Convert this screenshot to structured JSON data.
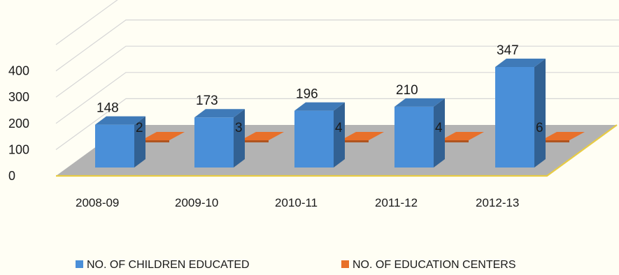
{
  "chart_data": {
    "type": "bar",
    "style": "3d-clustered-column",
    "categories": [
      "2008-09",
      "2009-10",
      "2010-11",
      "2011-12",
      "2012-13"
    ],
    "series": [
      {
        "name": "NO. OF CHILDREN EDUCATED",
        "values": [
          148,
          173,
          196,
          210,
          347
        ],
        "color": "#4a8fd8"
      },
      {
        "name": "NO. OF EDUCATION CENTERS",
        "values": [
          2,
          3,
          4,
          4,
          6
        ],
        "color": "#e8702a"
      }
    ],
    "yticks": [
      "0",
      "100",
      "200",
      "300",
      "400"
    ],
    "ylim": [
      0,
      400
    ],
    "title": "",
    "xlabel": "",
    "ylabel": "",
    "legend_position": "bottom",
    "grid": true,
    "floor_color": "#b3b3b3",
    "floor_edge_color": "#e8cc44"
  }
}
